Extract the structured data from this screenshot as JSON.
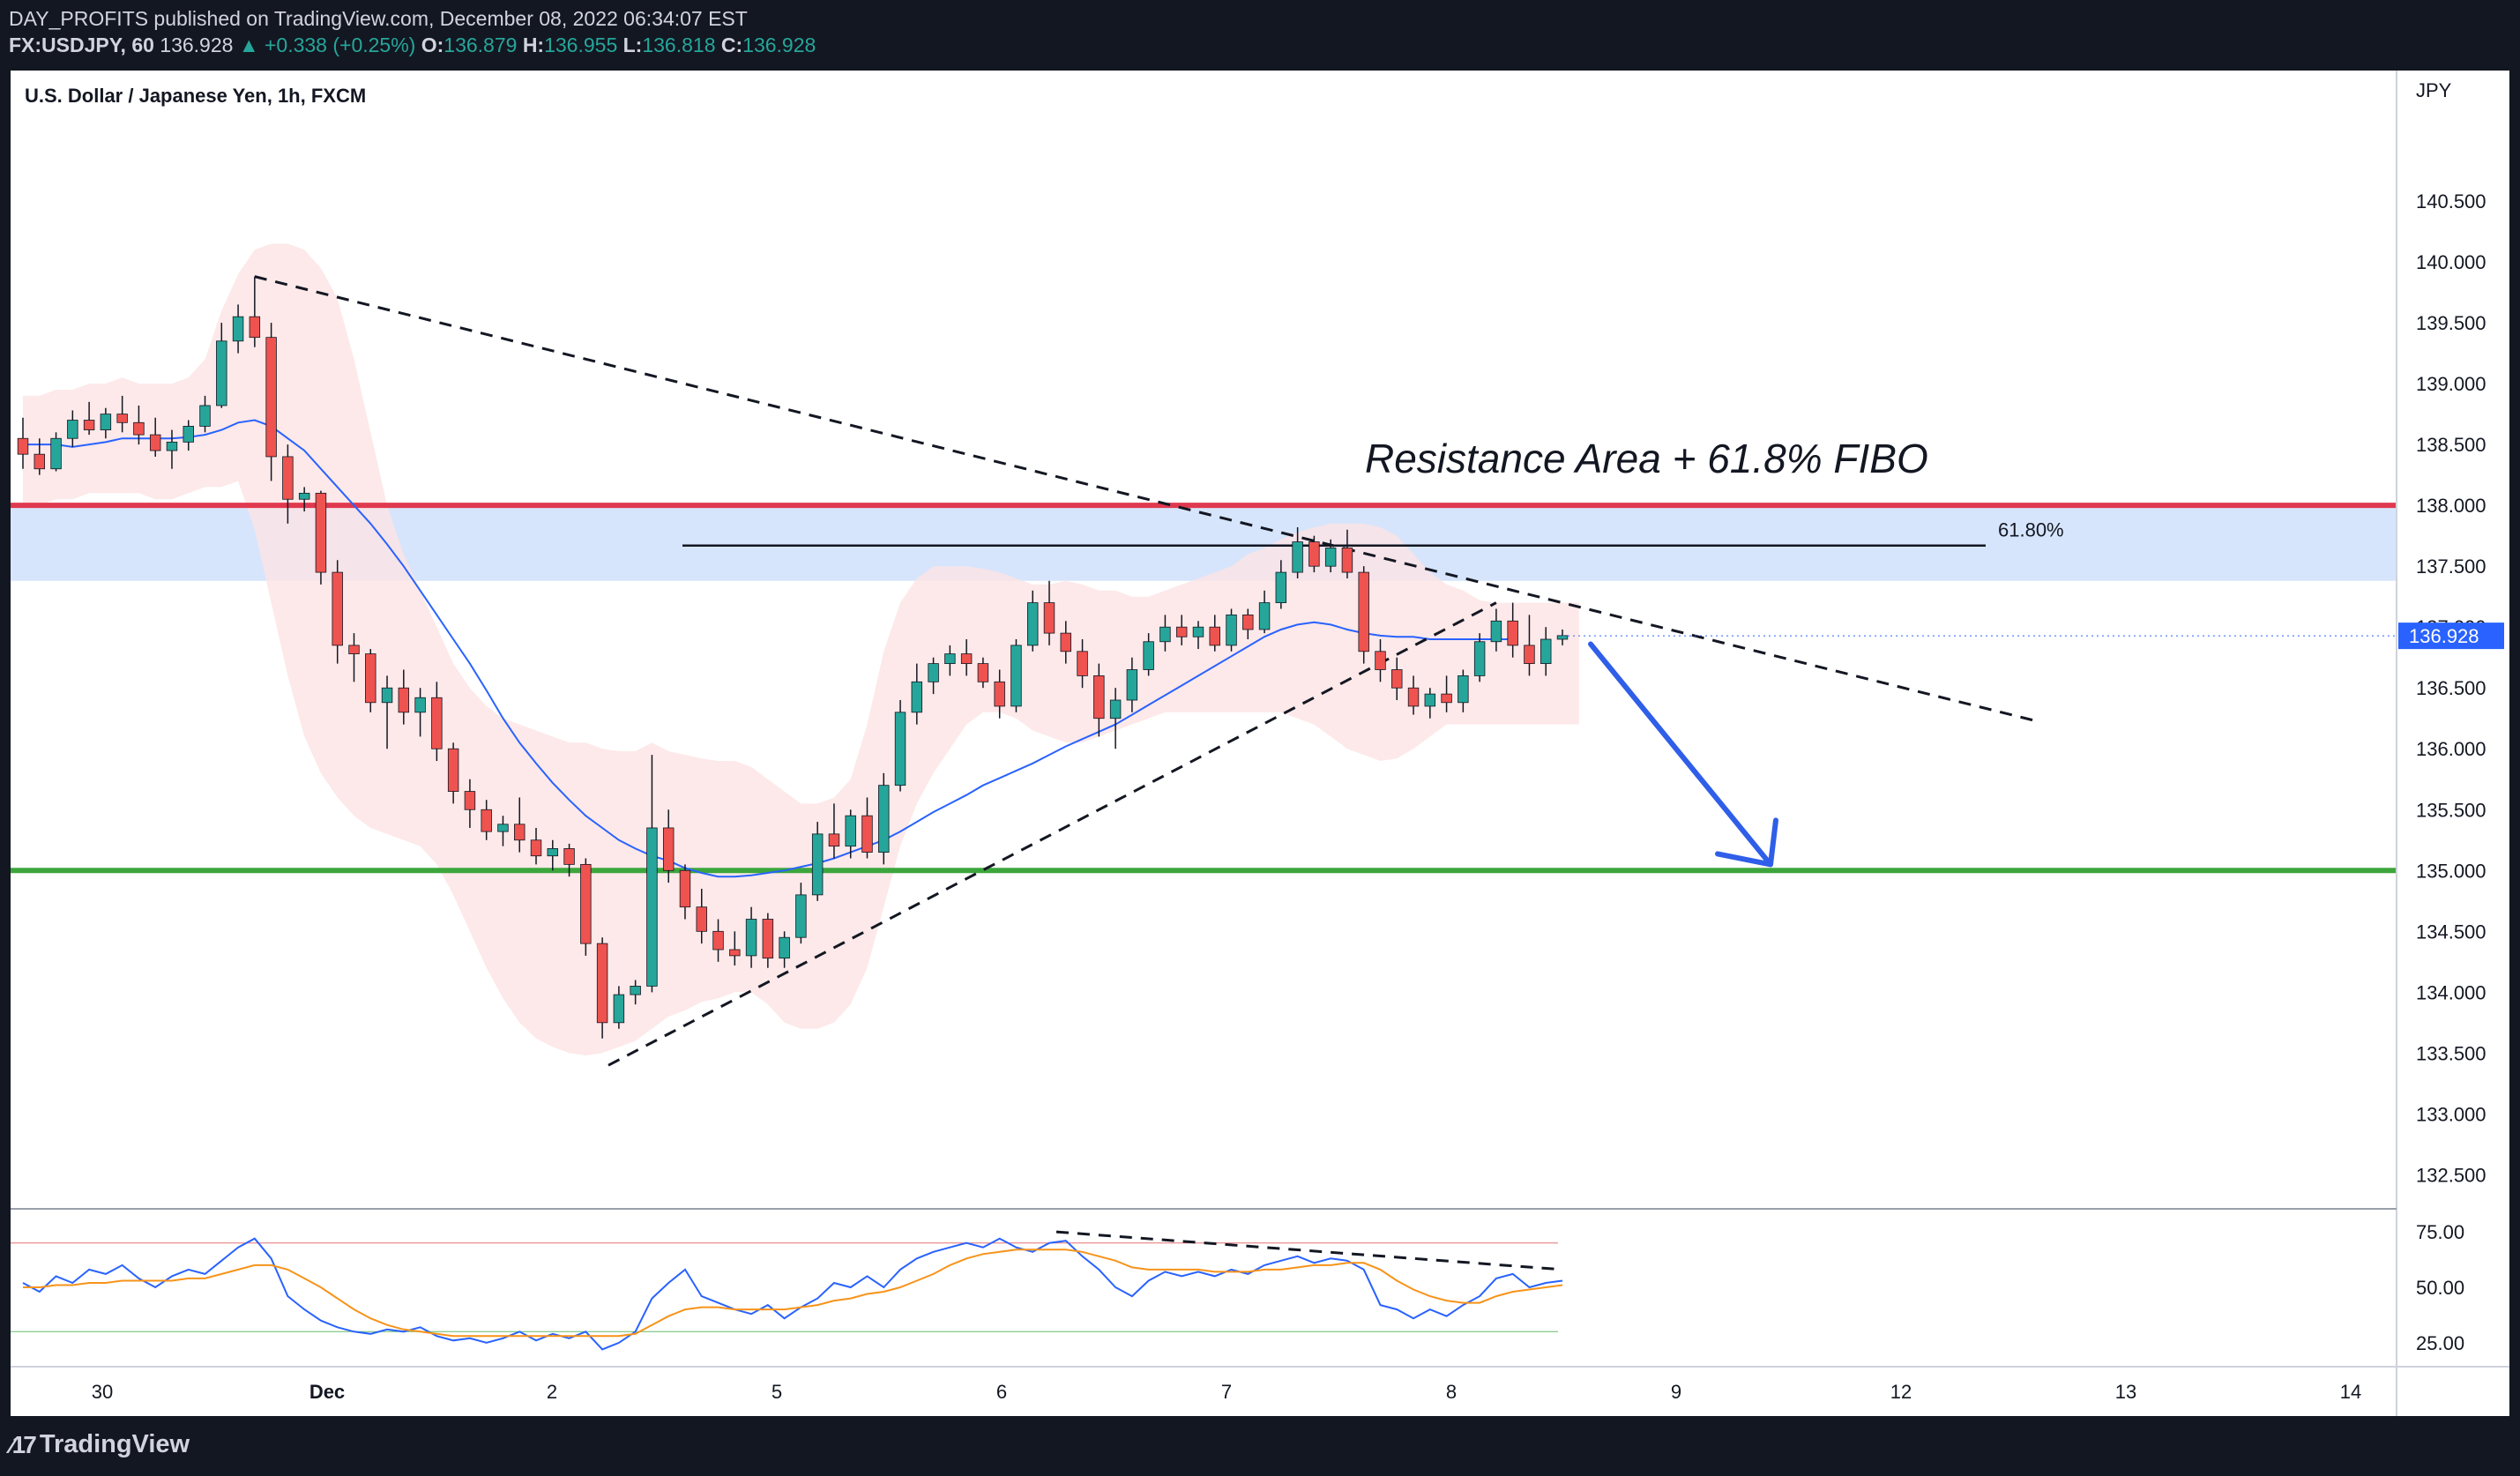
{
  "header": {
    "publisher_line": "DAY_PROFITS published on TradingView.com, December 08, 2022 06:34:07 EST",
    "symbol": "FX:USDJPY, 60",
    "last": "136.928",
    "change": "▲ +0.338 (+0.25%)",
    "open_label": "O:",
    "open": "136.879",
    "high_label": "H:",
    "high": "136.955",
    "low_label": "L:",
    "low": "136.818",
    "close_label": "C:",
    "close": "136.928"
  },
  "footer": {
    "brand": "TradingView"
  },
  "chart_data": {
    "type": "candlestick",
    "title": "U.S. Dollar / Japanese Yen, 1h, FXCM",
    "currency": "JPY",
    "ylim": [
      132.3,
      141.5
    ],
    "y_ticks": [
      140.5,
      140.0,
      139.5,
      139.0,
      138.5,
      138.0,
      137.5,
      137.0,
      136.5,
      136.0,
      135.5,
      135.0,
      134.5,
      134.0,
      133.5,
      133.0,
      132.5
    ],
    "last_price": 136.928,
    "last_price_label": "136.928",
    "x_labels": [
      "30",
      "Dec",
      "2",
      "5",
      "6",
      "7",
      "8",
      "9",
      "12",
      "13",
      "14"
    ],
    "annotation": "Resistance Area + 61.8% FIBO",
    "fib_label": "61.80%",
    "fib_level": 137.67,
    "resistance_zone": [
      137.38,
      138.0
    ],
    "resistance_line": 138.0,
    "support_line": 135.0,
    "colors": {
      "up": "#26a69a",
      "down": "#ef5350",
      "resistance": "#e0394f",
      "support": "#3ca63c",
      "zone": "#cfe0fb",
      "arrow": "#2f5fe8",
      "ma": "#2962ff",
      "band": "#fde4e4",
      "last_badge": "#2962ff"
    },
    "candles": [
      {
        "o": 138.55,
        "h": 138.72,
        "l": 138.3,
        "c": 138.42
      },
      {
        "o": 138.42,
        "h": 138.55,
        "l": 138.25,
        "c": 138.3
      },
      {
        "o": 138.3,
        "h": 138.6,
        "l": 138.28,
        "c": 138.55
      },
      {
        "o": 138.55,
        "h": 138.78,
        "l": 138.48,
        "c": 138.7
      },
      {
        "o": 138.7,
        "h": 138.85,
        "l": 138.58,
        "c": 138.62
      },
      {
        "o": 138.62,
        "h": 138.8,
        "l": 138.55,
        "c": 138.75
      },
      {
        "o": 138.75,
        "h": 138.9,
        "l": 138.6,
        "c": 138.68
      },
      {
        "o": 138.68,
        "h": 138.82,
        "l": 138.5,
        "c": 138.58
      },
      {
        "o": 138.58,
        "h": 138.72,
        "l": 138.4,
        "c": 138.45
      },
      {
        "o": 138.45,
        "h": 138.62,
        "l": 138.3,
        "c": 138.52
      },
      {
        "o": 138.52,
        "h": 138.7,
        "l": 138.45,
        "c": 138.65
      },
      {
        "o": 138.65,
        "h": 138.9,
        "l": 138.6,
        "c": 138.82
      },
      {
        "o": 138.82,
        "h": 139.5,
        "l": 138.8,
        "c": 139.35
      },
      {
        "o": 139.35,
        "h": 139.65,
        "l": 139.25,
        "c": 139.55
      },
      {
        "o": 139.55,
        "h": 139.88,
        "l": 139.3,
        "c": 139.38
      },
      {
        "o": 139.38,
        "h": 139.5,
        "l": 138.2,
        "c": 138.4
      },
      {
        "o": 138.4,
        "h": 138.5,
        "l": 137.85,
        "c": 138.05
      },
      {
        "o": 138.05,
        "h": 138.15,
        "l": 137.95,
        "c": 138.1
      },
      {
        "o": 138.1,
        "h": 138.12,
        "l": 137.35,
        "c": 137.45
      },
      {
        "o": 137.45,
        "h": 137.55,
        "l": 136.7,
        "c": 136.85
      },
      {
        "o": 136.85,
        "h": 136.95,
        "l": 136.55,
        "c": 136.78
      },
      {
        "o": 136.78,
        "h": 136.82,
        "l": 136.3,
        "c": 136.38
      },
      {
        "o": 136.38,
        "h": 136.6,
        "l": 136.0,
        "c": 136.5
      },
      {
        "o": 136.5,
        "h": 136.65,
        "l": 136.2,
        "c": 136.3
      },
      {
        "o": 136.3,
        "h": 136.5,
        "l": 136.1,
        "c": 136.42
      },
      {
        "o": 136.42,
        "h": 136.55,
        "l": 135.9,
        "c": 136.0
      },
      {
        "o": 136.0,
        "h": 136.05,
        "l": 135.55,
        "c": 135.65
      },
      {
        "o": 135.65,
        "h": 135.75,
        "l": 135.35,
        "c": 135.5
      },
      {
        "o": 135.5,
        "h": 135.58,
        "l": 135.25,
        "c": 135.32
      },
      {
        "o": 135.32,
        "h": 135.45,
        "l": 135.2,
        "c": 135.38
      },
      {
        "o": 135.38,
        "h": 135.6,
        "l": 135.15,
        "c": 135.25
      },
      {
        "o": 135.25,
        "h": 135.35,
        "l": 135.05,
        "c": 135.12
      },
      {
        "o": 135.12,
        "h": 135.25,
        "l": 135.0,
        "c": 135.18
      },
      {
        "o": 135.18,
        "h": 135.22,
        "l": 134.95,
        "c": 135.05
      },
      {
        "o": 135.05,
        "h": 135.1,
        "l": 134.3,
        "c": 134.4
      },
      {
        "o": 134.4,
        "h": 134.45,
        "l": 133.62,
        "c": 133.75
      },
      {
        "o": 133.75,
        "h": 134.05,
        "l": 133.7,
        "c": 133.98
      },
      {
        "o": 133.98,
        "h": 134.1,
        "l": 133.9,
        "c": 134.05
      },
      {
        "o": 134.05,
        "h": 135.95,
        "l": 134.0,
        "c": 135.35
      },
      {
        "o": 135.35,
        "h": 135.5,
        "l": 134.9,
        "c": 135.0
      },
      {
        "o": 135.0,
        "h": 135.05,
        "l": 134.6,
        "c": 134.7
      },
      {
        "o": 134.7,
        "h": 134.85,
        "l": 134.4,
        "c": 134.5
      },
      {
        "o": 134.5,
        "h": 134.6,
        "l": 134.25,
        "c": 134.35
      },
      {
        "o": 134.35,
        "h": 134.5,
        "l": 134.22,
        "c": 134.3
      },
      {
        "o": 134.3,
        "h": 134.7,
        "l": 134.2,
        "c": 134.6
      },
      {
        "o": 134.6,
        "h": 134.65,
        "l": 134.2,
        "c": 134.28
      },
      {
        "o": 134.28,
        "h": 134.5,
        "l": 134.2,
        "c": 134.45
      },
      {
        "o": 134.45,
        "h": 134.9,
        "l": 134.4,
        "c": 134.8
      },
      {
        "o": 134.8,
        "h": 135.4,
        "l": 134.75,
        "c": 135.3
      },
      {
        "o": 135.3,
        "h": 135.55,
        "l": 135.1,
        "c": 135.2
      },
      {
        "o": 135.2,
        "h": 135.5,
        "l": 135.1,
        "c": 135.45
      },
      {
        "o": 135.45,
        "h": 135.6,
        "l": 135.1,
        "c": 135.15
      },
      {
        "o": 135.15,
        "h": 135.8,
        "l": 135.05,
        "c": 135.7
      },
      {
        "o": 135.7,
        "h": 136.4,
        "l": 135.65,
        "c": 136.3
      },
      {
        "o": 136.3,
        "h": 136.7,
        "l": 136.2,
        "c": 136.55
      },
      {
        "o": 136.55,
        "h": 136.75,
        "l": 136.45,
        "c": 136.7
      },
      {
        "o": 136.7,
        "h": 136.85,
        "l": 136.6,
        "c": 136.78
      },
      {
        "o": 136.78,
        "h": 136.9,
        "l": 136.6,
        "c": 136.7
      },
      {
        "o": 136.7,
        "h": 136.75,
        "l": 136.5,
        "c": 136.55
      },
      {
        "o": 136.55,
        "h": 136.65,
        "l": 136.25,
        "c": 136.35
      },
      {
        "o": 136.35,
        "h": 136.9,
        "l": 136.3,
        "c": 136.85
      },
      {
        "o": 136.85,
        "h": 137.3,
        "l": 136.8,
        "c": 137.2
      },
      {
        "o": 137.2,
        "h": 137.38,
        "l": 136.85,
        "c": 136.95
      },
      {
        "o": 136.95,
        "h": 137.05,
        "l": 136.7,
        "c": 136.8
      },
      {
        "o": 136.8,
        "h": 136.9,
        "l": 136.5,
        "c": 136.6
      },
      {
        "o": 136.6,
        "h": 136.7,
        "l": 136.1,
        "c": 136.25
      },
      {
        "o": 136.25,
        "h": 136.5,
        "l": 136.0,
        "c": 136.4
      },
      {
        "o": 136.4,
        "h": 136.75,
        "l": 136.3,
        "c": 136.65
      },
      {
        "o": 136.65,
        "h": 136.95,
        "l": 136.6,
        "c": 136.88
      },
      {
        "o": 136.88,
        "h": 137.1,
        "l": 136.8,
        "c": 137.0
      },
      {
        "o": 137.0,
        "h": 137.1,
        "l": 136.85,
        "c": 136.92
      },
      {
        "o": 136.92,
        "h": 137.05,
        "l": 136.82,
        "c": 137.0
      },
      {
        "o": 137.0,
        "h": 137.1,
        "l": 136.8,
        "c": 136.85
      },
      {
        "o": 136.85,
        "h": 137.15,
        "l": 136.8,
        "c": 137.1
      },
      {
        "o": 137.1,
        "h": 137.15,
        "l": 136.9,
        "c": 136.98
      },
      {
        "o": 136.98,
        "h": 137.3,
        "l": 136.95,
        "c": 137.2
      },
      {
        "o": 137.2,
        "h": 137.55,
        "l": 137.15,
        "c": 137.45
      },
      {
        "o": 137.45,
        "h": 137.82,
        "l": 137.4,
        "c": 137.7
      },
      {
        "o": 137.7,
        "h": 137.75,
        "l": 137.45,
        "c": 137.5
      },
      {
        "o": 137.5,
        "h": 137.72,
        "l": 137.45,
        "c": 137.65
      },
      {
        "o": 137.65,
        "h": 137.8,
        "l": 137.4,
        "c": 137.45
      },
      {
        "o": 137.45,
        "h": 137.5,
        "l": 136.7,
        "c": 136.8
      },
      {
        "o": 136.8,
        "h": 136.9,
        "l": 136.55,
        "c": 136.65
      },
      {
        "o": 136.65,
        "h": 136.75,
        "l": 136.4,
        "c": 136.5
      },
      {
        "o": 136.5,
        "h": 136.6,
        "l": 136.28,
        "c": 136.35
      },
      {
        "o": 136.35,
        "h": 136.5,
        "l": 136.25,
        "c": 136.45
      },
      {
        "o": 136.45,
        "h": 136.6,
        "l": 136.3,
        "c": 136.38
      },
      {
        "o": 136.38,
        "h": 136.65,
        "l": 136.3,
        "c": 136.6
      },
      {
        "o": 136.6,
        "h": 136.95,
        "l": 136.55,
        "c": 136.88
      },
      {
        "o": 136.88,
        "h": 137.15,
        "l": 136.8,
        "c": 137.05
      },
      {
        "o": 137.05,
        "h": 137.2,
        "l": 136.75,
        "c": 136.85
      },
      {
        "o": 136.85,
        "h": 137.1,
        "l": 136.6,
        "c": 136.7
      },
      {
        "o": 136.7,
        "h": 137.0,
        "l": 136.6,
        "c": 136.9
      },
      {
        "o": 136.9,
        "h": 136.98,
        "l": 136.85,
        "c": 136.93
      }
    ],
    "ma": [
      138.5,
      138.5,
      138.5,
      138.48,
      138.5,
      138.52,
      138.55,
      138.55,
      138.55,
      138.55,
      138.56,
      138.58,
      138.62,
      138.68,
      138.7,
      138.65,
      138.55,
      138.45,
      138.3,
      138.15,
      138.0,
      137.85,
      137.68,
      137.5,
      137.3,
      137.1,
      136.9,
      136.7,
      136.48,
      136.25,
      136.05,
      135.88,
      135.72,
      135.58,
      135.45,
      135.35,
      135.25,
      135.18,
      135.12,
      135.08,
      135.02,
      134.98,
      134.95,
      134.95,
      134.96,
      134.98,
      135.0,
      135.03,
      135.06,
      135.1,
      135.15,
      135.2,
      135.25,
      135.32,
      135.4,
      135.48,
      135.55,
      135.62,
      135.7,
      135.76,
      135.82,
      135.88,
      135.95,
      136.02,
      136.08,
      136.14,
      136.2,
      136.28,
      136.36,
      136.44,
      136.52,
      136.6,
      136.68,
      136.76,
      136.84,
      136.92,
      136.98,
      137.02,
      137.04,
      137.02,
      136.98,
      136.95,
      136.93,
      136.92,
      136.92,
      136.9,
      136.9,
      136.9,
      136.9,
      136.9,
      136.9
    ],
    "band_upper": [
      138.9,
      138.9,
      138.95,
      138.95,
      139.0,
      139.0,
      139.05,
      139.0,
      139.0,
      139.0,
      139.05,
      139.2,
      139.6,
      139.9,
      140.1,
      140.15,
      140.15,
      140.1,
      139.95,
      139.7,
      139.2,
      138.6,
      138.0,
      137.6,
      137.3,
      137.0,
      136.7,
      136.5,
      136.35,
      136.25,
      136.2,
      136.15,
      136.1,
      136.05,
      136.05,
      136.0,
      135.98,
      135.98,
      136.05,
      135.98,
      135.95,
      135.92,
      135.9,
      135.9,
      135.85,
      135.75,
      135.65,
      135.55,
      135.55,
      135.6,
      135.75,
      136.2,
      136.8,
      137.2,
      137.4,
      137.5,
      137.5,
      137.5,
      137.48,
      137.45,
      137.4,
      137.35,
      137.35,
      137.38,
      137.35,
      137.3,
      137.3,
      137.25,
      137.25,
      137.3,
      137.35,
      137.4,
      137.45,
      137.5,
      137.6,
      137.65,
      137.72,
      137.78,
      137.82,
      137.85,
      137.85,
      137.85,
      137.82,
      137.75,
      137.6,
      137.45,
      137.35,
      137.3,
      137.22,
      137.2,
      137.2,
      137.2,
      137.2,
      137.2,
      137.2
    ],
    "band_lower": [
      138.0,
      138.0,
      138.05,
      138.05,
      138.1,
      138.1,
      138.1,
      138.1,
      138.05,
      138.05,
      138.1,
      138.15,
      138.15,
      138.2,
      137.8,
      137.2,
      136.6,
      136.1,
      135.8,
      135.6,
      135.45,
      135.35,
      135.3,
      135.25,
      135.2,
      135.05,
      134.8,
      134.5,
      134.2,
      133.95,
      133.75,
      133.62,
      133.55,
      133.5,
      133.48,
      133.5,
      133.55,
      133.6,
      133.7,
      133.8,
      133.85,
      133.92,
      133.95,
      134.0,
      134.0,
      133.9,
      133.75,
      133.7,
      133.7,
      133.75,
      133.9,
      134.2,
      134.7,
      135.2,
      135.55,
      135.8,
      136.0,
      136.2,
      136.3,
      136.3,
      136.25,
      136.15,
      136.1,
      136.05,
      136.05,
      136.1,
      136.15,
      136.2,
      136.25,
      136.3,
      136.3,
      136.3,
      136.3,
      136.3,
      136.3,
      136.3,
      136.3,
      136.25,
      136.2,
      136.1,
      136.0,
      135.95,
      135.9,
      135.92,
      136.0,
      136.1,
      136.2,
      136.2,
      136.2,
      136.2,
      136.2,
      136.2,
      136.2,
      136.2,
      136.2
    ],
    "rsi": {
      "ylim": [
        15,
        85
      ],
      "ticks": [
        75.0,
        50.0,
        25.0
      ],
      "tick_labels": [
        "75.00",
        "50.00",
        "25.00"
      ],
      "overbought": 70,
      "oversold": 30,
      "rsi_color": "#2962ff",
      "signal_color": "#f7931a",
      "values": [
        52,
        48,
        55,
        52,
        58,
        56,
        60,
        54,
        50,
        55,
        58,
        56,
        62,
        68,
        72,
        63,
        46,
        40,
        35,
        32,
        30,
        29,
        31,
        30,
        32,
        28,
        26,
        27,
        25,
        27,
        30,
        26,
        29,
        27,
        30,
        22,
        25,
        30,
        45,
        52,
        58,
        46,
        43,
        40,
        38,
        42,
        36,
        41,
        45,
        52,
        50,
        55,
        50,
        58,
        63,
        66,
        68,
        70,
        68,
        72,
        68,
        66,
        70,
        71,
        64,
        58,
        50,
        46,
        53,
        57,
        55,
        57,
        55,
        58,
        56,
        60,
        62,
        64,
        61,
        63,
        62,
        58,
        42,
        40,
        36,
        40,
        37,
        42,
        46,
        54,
        56,
        50,
        52,
        53
      ],
      "signal": [
        50,
        50,
        51,
        51,
        52,
        52,
        53,
        53,
        53,
        53,
        54,
        54,
        56,
        58,
        60,
        60,
        58,
        54,
        50,
        45,
        40,
        36,
        33,
        31,
        30,
        29,
        28,
        28,
        28,
        28,
        28,
        28,
        28,
        28,
        28,
        28,
        28,
        29,
        33,
        37,
        40,
        41,
        41,
        40,
        40,
        40,
        40,
        41,
        42,
        44,
        45,
        47,
        48,
        50,
        53,
        56,
        60,
        63,
        65,
        66,
        67,
        67,
        67,
        67,
        66,
        64,
        62,
        59,
        58,
        58,
        58,
        58,
        57,
        57,
        57,
        58,
        58,
        59,
        60,
        60,
        61,
        61,
        58,
        53,
        49,
        46,
        44,
        43,
        43,
        46,
        48,
        49,
        50,
        51
      ]
    }
  }
}
